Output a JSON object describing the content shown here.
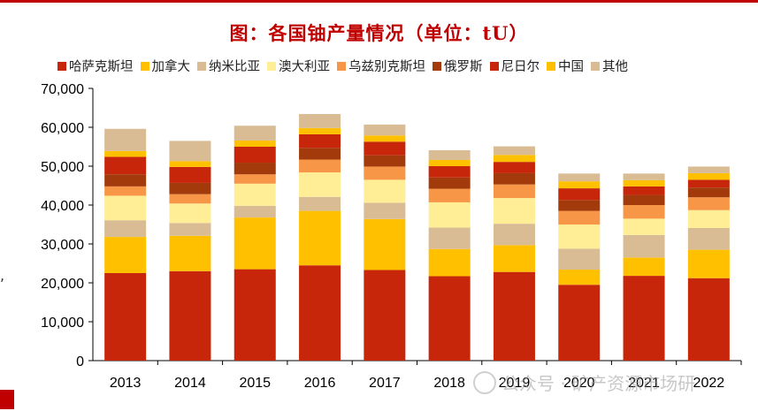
{
  "chart_data": {
    "type": "bar",
    "stacked": true,
    "title": "图：各国铀产量情况（单位：tU）",
    "categories": [
      "2013",
      "2014",
      "2015",
      "2016",
      "2017",
      "2018",
      "2019",
      "2020",
      "2021",
      "2022"
    ],
    "ylim": [
      0,
      70000
    ],
    "yticks": [
      0,
      10000,
      20000,
      30000,
      40000,
      50000,
      60000,
      70000
    ],
    "ytick_labels": [
      "0",
      "10,000",
      "20,000",
      "30,000",
      "40,000",
      "50,000",
      "60,000",
      "70,000"
    ],
    "legend_position": "top",
    "series": [
      {
        "name": "哈萨克斯坦",
        "color": "#c8260a",
        "values": [
          22500,
          23000,
          23500,
          24500,
          23300,
          21700,
          22800,
          19500,
          21800,
          21200
        ]
      },
      {
        "name": "加拿大",
        "color": "#ffc000",
        "values": [
          9300,
          9100,
          13300,
          14000,
          13100,
          7000,
          6900,
          3900,
          4700,
          7300
        ]
      },
      {
        "name": "纳米比亚",
        "color": "#d9bc94",
        "values": [
          4300,
          3300,
          3000,
          3600,
          4200,
          5500,
          5500,
          5400,
          5800,
          5600
        ]
      },
      {
        "name": "澳大利亚",
        "color": "#ffee96",
        "values": [
          6300,
          5000,
          5700,
          6300,
          5900,
          6500,
          6600,
          6200,
          4200,
          4600
        ]
      },
      {
        "name": "乌兹别克斯坦",
        "color": "#f79646",
        "values": [
          2400,
          2400,
          2400,
          3300,
          3400,
          3500,
          3500,
          3500,
          3500,
          3300
        ]
      },
      {
        "name": "俄罗斯",
        "color": "#a23a0c",
        "values": [
          3100,
          2900,
          3000,
          3000,
          2900,
          2900,
          2900,
          2800,
          2600,
          2500
        ]
      },
      {
        "name": "尼日尔",
        "color": "#c8260a",
        "values": [
          4500,
          4100,
          4100,
          3500,
          3500,
          2900,
          2900,
          3000,
          2200,
          2000
        ]
      },
      {
        "name": "中国",
        "color": "#ffc000",
        "values": [
          1500,
          1500,
          1600,
          1600,
          1600,
          1600,
          1800,
          1800,
          1600,
          1700
        ]
      },
      {
        "name": "其他",
        "color": "#d9bc94",
        "values": [
          5700,
          5200,
          3800,
          3600,
          2800,
          2500,
          2200,
          2000,
          1700,
          1700
        ]
      }
    ]
  },
  "watermark": {
    "text": "公众号 · 矿产资源市场研"
  },
  "stray_text": ","
}
